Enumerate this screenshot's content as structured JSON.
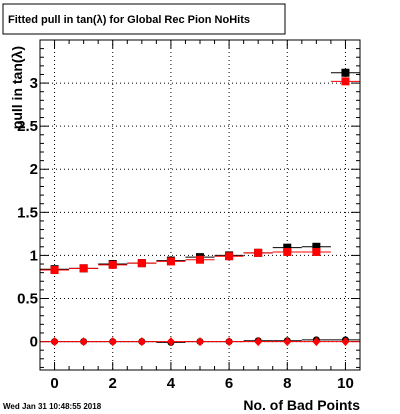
{
  "chart_data": {
    "type": "scatter",
    "title": "Fitted pull in tan(λ) for Global Rec Pion NoHits",
    "xlabel": "No. of Bad Points",
    "ylabel": "pull in tan(λ)",
    "xlim": [
      -0.5,
      10.5
    ],
    "ylim": [
      -0.33,
      3.5
    ],
    "x_ticks": [
      0,
      2,
      4,
      6,
      8,
      10
    ],
    "y_ticks": [
      0,
      0.5,
      1,
      1.5,
      2,
      2.5,
      3
    ],
    "x_tick_labels": [
      "0",
      "2",
      "4",
      "6",
      "8",
      "10"
    ],
    "y_tick_labels": [
      "0",
      "0.5",
      "1",
      "1.5",
      "2",
      "2.5",
      "3"
    ],
    "grid": true,
    "legend": "none",
    "series": [
      {
        "marker": "square",
        "color": "#000000",
        "x": [
          0,
          1,
          2,
          3,
          4,
          5,
          6,
          7,
          8,
          9,
          10
        ],
        "values": [
          0.84,
          0.85,
          0.9,
          0.91,
          0.94,
          0.98,
          1.0,
          1.03,
          1.09,
          1.1,
          3.12
        ]
      },
      {
        "marker": "square",
        "color": "#ff0000",
        "x": [
          0,
          1,
          2,
          3,
          4,
          5,
          6,
          7,
          8,
          9,
          10
        ],
        "values": [
          0.83,
          0.85,
          0.89,
          0.91,
          0.93,
          0.95,
          0.99,
          1.03,
          1.04,
          1.04,
          3.02
        ]
      },
      {
        "marker": "circle",
        "color": "#000000",
        "x": [
          0,
          1,
          2,
          3,
          4,
          5,
          6,
          7,
          8,
          9,
          10
        ],
        "values": [
          0.0,
          0.0,
          0.0,
          0.0,
          -0.01,
          0.0,
          0.0,
          0.01,
          0.01,
          0.02,
          0.02
        ]
      },
      {
        "marker": "diamond",
        "color": "#ff0000",
        "x": [
          0,
          1,
          2,
          3,
          4,
          5,
          6,
          7,
          8,
          9,
          10
        ],
        "values": [
          0.0,
          0.0,
          0.0,
          0.0,
          0.0,
          0.0,
          0.0,
          0.0,
          0.0,
          0.0,
          0.0
        ]
      }
    ]
  },
  "footer": {
    "timestamp": "Wed Jan 31 10:48:55 2018"
  }
}
